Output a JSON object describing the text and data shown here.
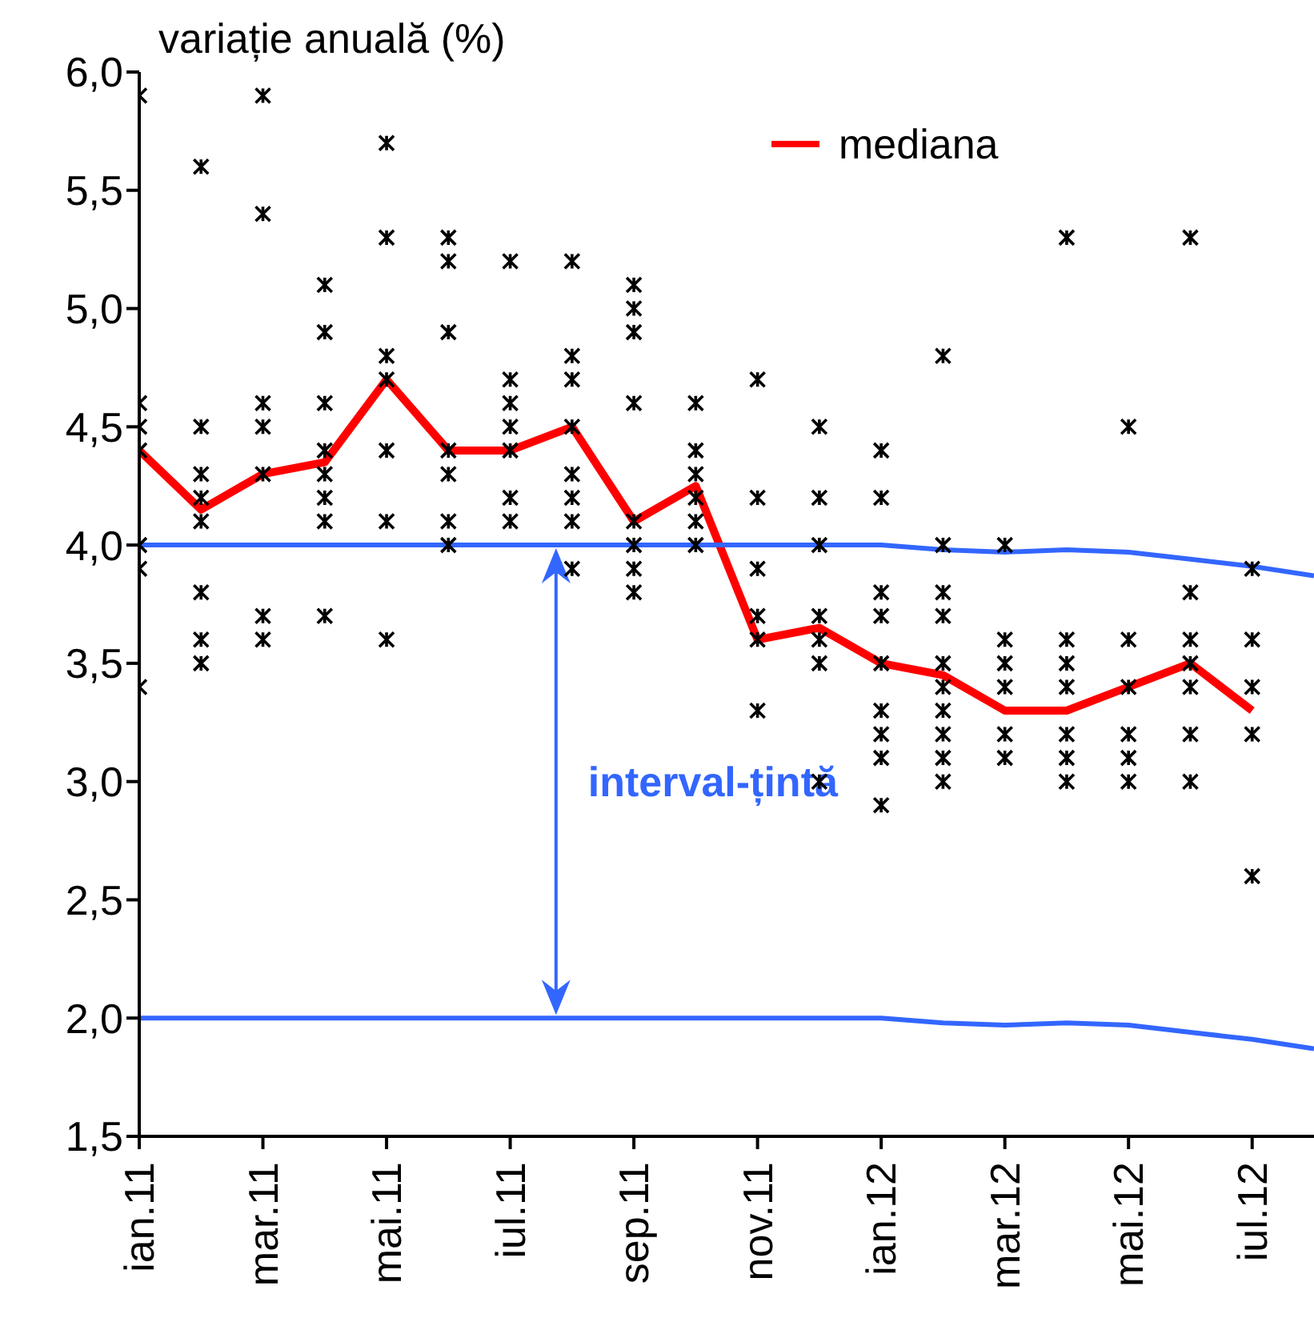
{
  "chart_data": {
    "type": "scatter",
    "ylabel": "variație anuală (%)",
    "categories": [
      "ian.11",
      null,
      "mar.11",
      null,
      "mai.11",
      null,
      "iul.11",
      null,
      "sep.11",
      null,
      "nov.11",
      null,
      "ian.12",
      null,
      "mar.12",
      null,
      "mai.12",
      null,
      "iul.12",
      null
    ],
    "ylim": [
      1.5,
      6
    ],
    "yticks": [
      {
        "value": 1.5,
        "label": "1,5"
      },
      {
        "value": 2,
        "label": "2,0"
      },
      {
        "value": 2.5,
        "label": "2,5"
      },
      {
        "value": 3,
        "label": "3,0"
      },
      {
        "value": 3.5,
        "label": "3,5"
      },
      {
        "value": 4,
        "label": "4,0"
      },
      {
        "value": 4.5,
        "label": "4,5"
      },
      {
        "value": 5,
        "label": "5,0"
      },
      {
        "value": 5.5,
        "label": "5,5"
      },
      {
        "value": 6,
        "label": "6,0"
      }
    ],
    "legend": "top right",
    "annotations": [
      "interval-țintă"
    ],
    "series": [
      {
        "marker": "cross",
        "color": "#000000",
        "values": [
          5.9,
          5.6,
          5.9,
          5.1,
          5.7,
          5.3,
          5.2,
          5.2,
          5.1,
          4.6,
          4.7,
          4.5,
          4.4,
          4.8,
          4.0,
          5.3,
          4.5,
          5.3,
          3.9,
          null
        ]
      },
      {
        "marker": "cross",
        "color": "#000000",
        "values": [
          4.6,
          4.5,
          5.4,
          4.9,
          5.3,
          5.2,
          4.7,
          4.8,
          5.0,
          4.4,
          4.2,
          4.2,
          4.2,
          4.0,
          3.6,
          3.6,
          3.6,
          3.8,
          3.6,
          null
        ]
      },
      {
        "marker": "cross",
        "color": "#000000",
        "values": [
          4.5,
          4.3,
          4.6,
          4.6,
          4.8,
          4.9,
          4.6,
          4.7,
          4.9,
          4.3,
          3.9,
          4.0,
          3.8,
          3.8,
          3.5,
          3.5,
          3.4,
          3.6,
          3.4,
          null
        ]
      },
      {
        "marker": "cross",
        "color": "#000000",
        "values": [
          4.4,
          4.2,
          4.5,
          4.4,
          4.7,
          4.4,
          4.5,
          4.5,
          4.6,
          4.2,
          3.7,
          3.7,
          3.7,
          3.7,
          3.4,
          3.4,
          3.2,
          3.5,
          3.2,
          null
        ]
      },
      {
        "marker": "cross",
        "color": "#000000",
        "values": [
          4.0,
          4.1,
          4.3,
          4.3,
          4.4,
          4.3,
          4.4,
          4.3,
          4.1,
          4.1,
          3.6,
          3.6,
          3.5,
          3.5,
          3.2,
          3.2,
          3.1,
          3.4,
          2.6,
          null
        ]
      },
      {
        "marker": "cross",
        "color": "#000000",
        "values": [
          3.9,
          3.8,
          3.7,
          4.2,
          4.1,
          4.1,
          4.2,
          4.2,
          4.0,
          4.0,
          3.3,
          3.5,
          3.3,
          3.4,
          3.1,
          3.1,
          3.0,
          3.2,
          null,
          null
        ]
      },
      {
        "marker": "cross",
        "color": "#000000",
        "values": [
          3.4,
          3.6,
          3.6,
          4.1,
          3.6,
          4.0,
          4.1,
          4.1,
          3.9,
          null,
          null,
          3.0,
          3.2,
          3.3,
          null,
          3.0,
          null,
          3.0,
          null,
          null
        ]
      },
      {
        "marker": "cross",
        "color": "#000000",
        "values": [
          null,
          3.5,
          null,
          3.7,
          null,
          null,
          null,
          3.9,
          3.8,
          null,
          null,
          null,
          3.1,
          3.2,
          null,
          null,
          null,
          null,
          null,
          null
        ]
      },
      {
        "marker": "cross",
        "color": "#000000",
        "values": [
          null,
          null,
          null,
          null,
          null,
          null,
          null,
          null,
          null,
          null,
          null,
          null,
          2.9,
          3.1,
          null,
          null,
          null,
          null,
          null,
          null
        ]
      },
      {
        "marker": "cross",
        "color": "#000000",
        "values": [
          null,
          null,
          null,
          null,
          null,
          null,
          null,
          null,
          null,
          null,
          null,
          null,
          null,
          3.0,
          null,
          null,
          null,
          null,
          null,
          null
        ]
      },
      {
        "type": "line",
        "name": "mediana",
        "color": "#ff0000",
        "values": [
          4.4,
          4.15,
          4.3,
          4.35,
          4.7,
          4.4,
          4.4,
          4.5,
          4.1,
          4.25,
          3.6,
          3.65,
          3.5,
          3.45,
          3.3,
          3.3,
          3.4,
          3.5,
          3.3,
          null
        ]
      },
      {
        "type": "line",
        "color": "#3366ff",
        "values": [
          4.0,
          4.0,
          4.0,
          4.0,
          4.0,
          4.0,
          4.0,
          4.0,
          4.0,
          4.0,
          4.0,
          4.0,
          4.0,
          3.98,
          3.97,
          3.98,
          3.97,
          3.94,
          3.91,
          3.87
        ]
      },
      {
        "type": "line",
        "color": "#3366ff",
        "values": [
          2.0,
          2.0,
          2.0,
          2.0,
          2.0,
          2.0,
          2.0,
          2.0,
          2.0,
          2.0,
          2.0,
          2.0,
          2.0,
          1.98,
          1.97,
          1.98,
          1.97,
          1.94,
          1.91,
          1.87
        ]
      }
    ]
  }
}
